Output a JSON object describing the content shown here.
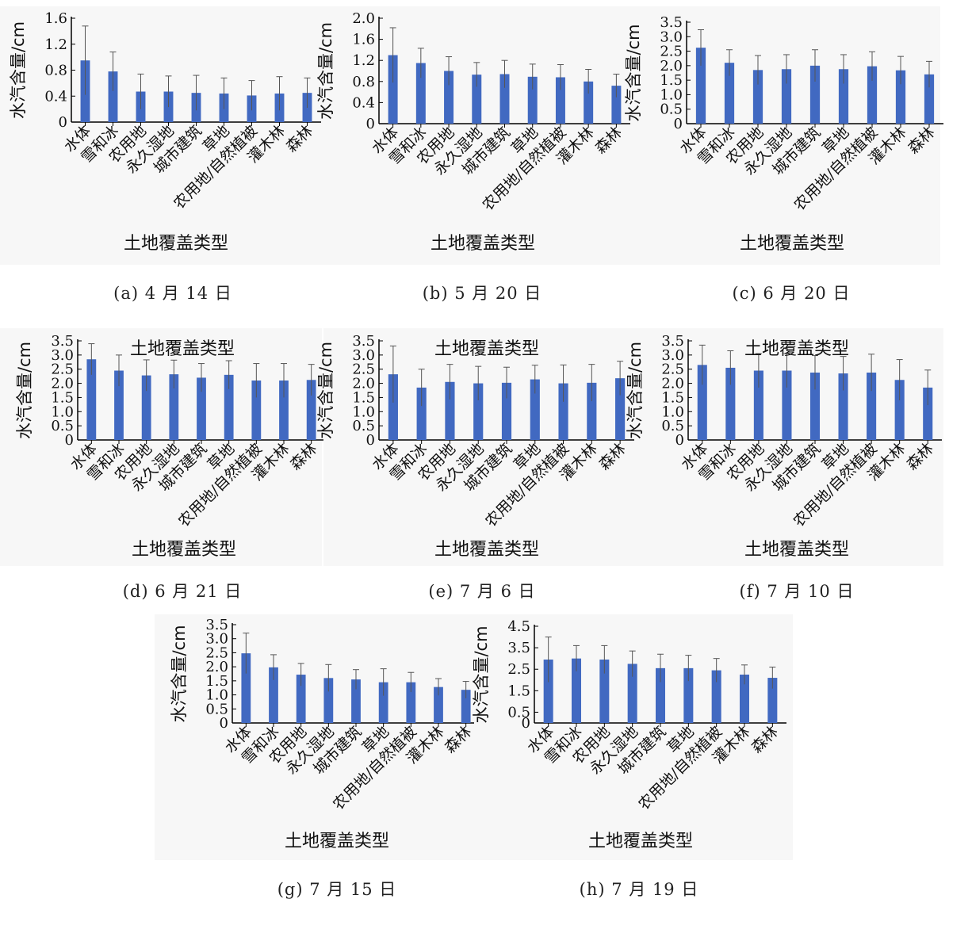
{
  "style": {
    "bar_color": "#4169c1",
    "axis_color": "#000000",
    "error_bar_color": "#555555",
    "panel_bg": "#f7f7f7"
  },
  "chart_data": [
    {
      "type": "bar",
      "caption": "(a) 4 月 14 日",
      "categories": [
        "水体",
        "雪和冰",
        "农用地",
        "永久湿地",
        "城市建筑",
        "草地",
        "农用地/自然植被",
        "灌木林",
        "森林"
      ],
      "ylabel": "水汽含量/cm",
      "xlabel": "土地覆盖类型",
      "ylim": [
        0,
        1.6
      ],
      "yticks": [
        "0",
        "0.4",
        "0.8",
        "1.2",
        "1.6"
      ],
      "values": [
        0.95,
        0.78,
        0.47,
        0.47,
        0.45,
        0.44,
        0.41,
        0.44,
        0.45
      ],
      "errors": [
        0.53,
        0.3,
        0.27,
        0.24,
        0.27,
        0.24,
        0.23,
        0.26,
        0.23
      ]
    },
    {
      "type": "bar",
      "caption": "(b) 5 月 20 日",
      "categories": [
        "水体",
        "雪和冰",
        "农用地",
        "永久湿地",
        "城市建筑",
        "草地",
        "农用地/自然植被",
        "灌木林",
        "森林"
      ],
      "ylabel": "水汽含量/cm",
      "xlabel": "土地覆盖类型",
      "ylim": [
        0,
        2.0
      ],
      "yticks": [
        "0",
        "0.4",
        "0.8",
        "1.2",
        "1.6",
        "2.0"
      ],
      "values": [
        1.3,
        1.15,
        1.0,
        0.93,
        0.94,
        0.89,
        0.88,
        0.8,
        0.72
      ],
      "errors": [
        0.52,
        0.28,
        0.27,
        0.23,
        0.26,
        0.24,
        0.24,
        0.23,
        0.22
      ]
    },
    {
      "type": "bar",
      "caption": "(c) 6 月 20 日",
      "categories": [
        "水体",
        "雪和冰",
        "农用地",
        "永久湿地",
        "城市建筑",
        "草地",
        "农用地/自然植被",
        "灌木林",
        "森林"
      ],
      "ylabel": "水汽含量/cm",
      "xlabel": "土地覆盖类型",
      "ylim": [
        0,
        3.5
      ],
      "yticks": [
        "0",
        "0.5",
        "1.0",
        "1.5",
        "2.0",
        "2.5",
        "3.0",
        "3.5"
      ],
      "values": [
        2.62,
        2.1,
        1.85,
        1.88,
        2.0,
        1.88,
        1.98,
        1.84,
        1.7
      ],
      "errors": [
        0.62,
        0.45,
        0.5,
        0.5,
        0.55,
        0.5,
        0.5,
        0.48,
        0.45
      ]
    },
    {
      "type": "bar",
      "caption": "(d) 6 月 21 日",
      "categories": [
        "水体",
        "雪和冰",
        "农用地",
        "永久湿地",
        "城市建筑",
        "草地",
        "农用地/自然植被",
        "灌木林",
        "森林"
      ],
      "ylabel": "水汽含量/cm",
      "xlabel": "土地覆盖类型",
      "title": "土地覆盖类型",
      "ylim": [
        0,
        3.5
      ],
      "yticks": [
        "0",
        "0.5",
        "1.0",
        "1.5",
        "2.0",
        "2.5",
        "3.0",
        "3.5"
      ],
      "values": [
        2.85,
        2.45,
        2.28,
        2.32,
        2.2,
        2.3,
        2.1,
        2.1,
        2.12
      ],
      "errors": [
        0.55,
        0.55,
        0.55,
        0.5,
        0.5,
        0.5,
        0.6,
        0.6,
        0.55
      ]
    },
    {
      "type": "bar",
      "caption": "(e) 7 月 6 日",
      "categories": [
        "水体",
        "雪和冰",
        "农用地",
        "永久湿地",
        "城市建筑",
        "草地",
        "农用地/自然植被",
        "灌木林",
        "森林"
      ],
      "ylabel": "水汽含量/cm",
      "xlabel": "土地覆盖类型",
      "title": "土地覆盖类型",
      "ylim": [
        0,
        3.5
      ],
      "yticks": [
        "0",
        "0.5",
        "1.0",
        "1.5",
        "2.0",
        "2.5",
        "3.0",
        "3.5"
      ],
      "values": [
        2.32,
        1.85,
        2.05,
        2.0,
        2.02,
        2.14,
        2.0,
        2.02,
        2.18
      ],
      "errors": [
        1.0,
        0.65,
        0.62,
        0.6,
        0.55,
        0.5,
        0.65,
        0.65,
        0.6
      ]
    },
    {
      "type": "bar",
      "caption": "(f) 7 月 10 日",
      "categories": [
        "水体",
        "雪和冰",
        "农用地",
        "永久湿地",
        "城市建筑",
        "草地",
        "农用地/自然植被",
        "灌木林",
        "森林"
      ],
      "ylabel": "水汽含量/cm",
      "xlabel": "土地覆盖类型",
      "title": "土地覆盖类型",
      "ylim": [
        0,
        3.5
      ],
      "yticks": [
        "0",
        "0.5",
        "1.0",
        "1.5",
        "2.0",
        "2.5",
        "3.0",
        "3.5"
      ],
      "values": [
        2.65,
        2.55,
        2.45,
        2.45,
        2.38,
        2.35,
        2.38,
        2.12,
        1.85
      ],
      "errors": [
        0.7,
        0.6,
        0.6,
        0.6,
        0.6,
        0.6,
        0.65,
        0.72,
        0.62
      ]
    },
    {
      "type": "bar",
      "caption": "(g) 7 月 15 日",
      "categories": [
        "水体",
        "雪和冰",
        "农用地",
        "永久湿地",
        "城市建筑",
        "草地",
        "农用地/自然植被",
        "灌木林",
        "森林"
      ],
      "ylabel": "水汽含量/cm",
      "xlabel": "土地覆盖类型",
      "ylim": [
        0,
        3.5
      ],
      "yticks": [
        "0",
        "0.5",
        "1.0",
        "1.5",
        "2.0",
        "2.5",
        "3.0",
        "3.5"
      ],
      "values": [
        2.48,
        1.98,
        1.72,
        1.6,
        1.55,
        1.45,
        1.45,
        1.28,
        1.18
      ],
      "errors": [
        0.72,
        0.45,
        0.4,
        0.48,
        0.35,
        0.48,
        0.35,
        0.3,
        0.3
      ]
    },
    {
      "type": "bar",
      "caption": "(h) 7 月 19 日",
      "categories": [
        "水体",
        "雪和冰",
        "农用地",
        "永久湿地",
        "城市建筑",
        "草地",
        "农用地/自然植被",
        "灌木林",
        "森林"
      ],
      "ylabel": "水汽含量/cm",
      "xlabel": "土地覆盖类型",
      "ylim": [
        0,
        4.5
      ],
      "yticks": [
        "0",
        "0.5",
        "1.5",
        "2.5",
        "3.5",
        "4.5"
      ],
      "values": [
        2.95,
        3.0,
        2.95,
        2.75,
        2.55,
        2.55,
        2.45,
        2.25,
        2.1
      ],
      "errors": [
        1.05,
        0.6,
        0.65,
        0.6,
        0.65,
        0.6,
        0.55,
        0.45,
        0.5
      ]
    }
  ]
}
